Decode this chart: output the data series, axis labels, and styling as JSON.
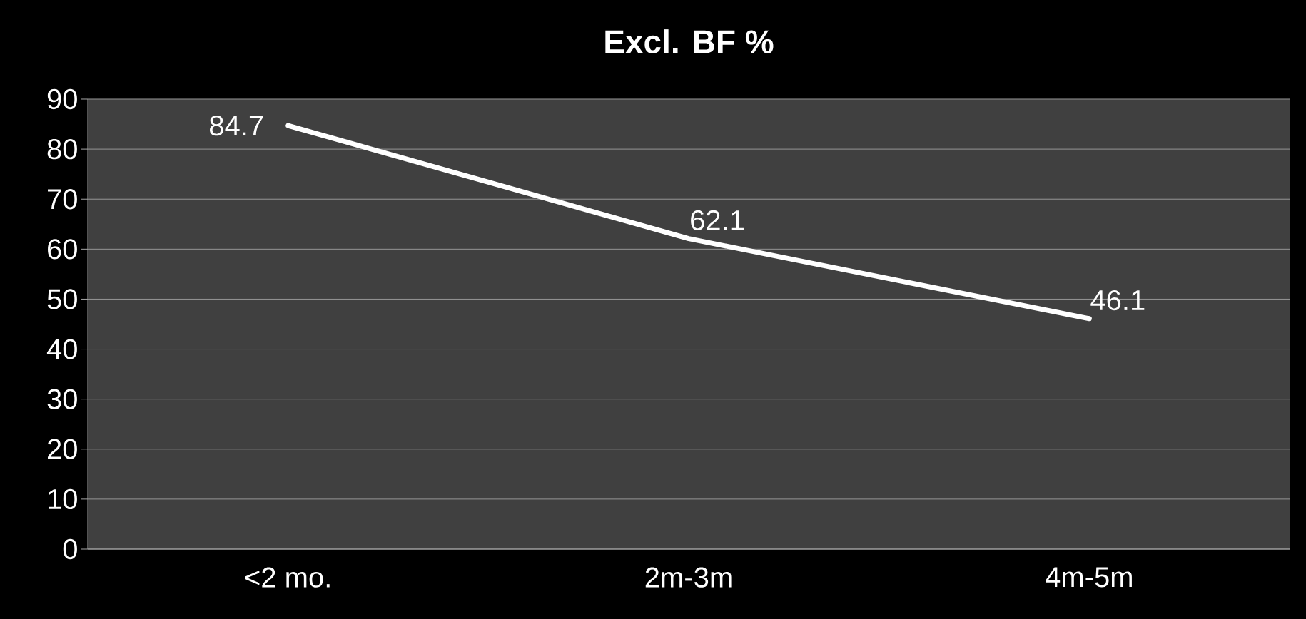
{
  "chart_data": {
    "type": "line",
    "title": "Excl. BF %",
    "categories": [
      "<2 mo.",
      "2m-3m",
      "4m-5m"
    ],
    "series": [
      {
        "color": "#ffffff",
        "values": [
          84.7,
          62.1,
          46.1
        ]
      }
    ],
    "ylim": [
      0,
      90
    ],
    "yticks": [
      0,
      10,
      20,
      30,
      40,
      50,
      60,
      70,
      80,
      90
    ],
    "grid": "y",
    "data_labels": true
  }
}
